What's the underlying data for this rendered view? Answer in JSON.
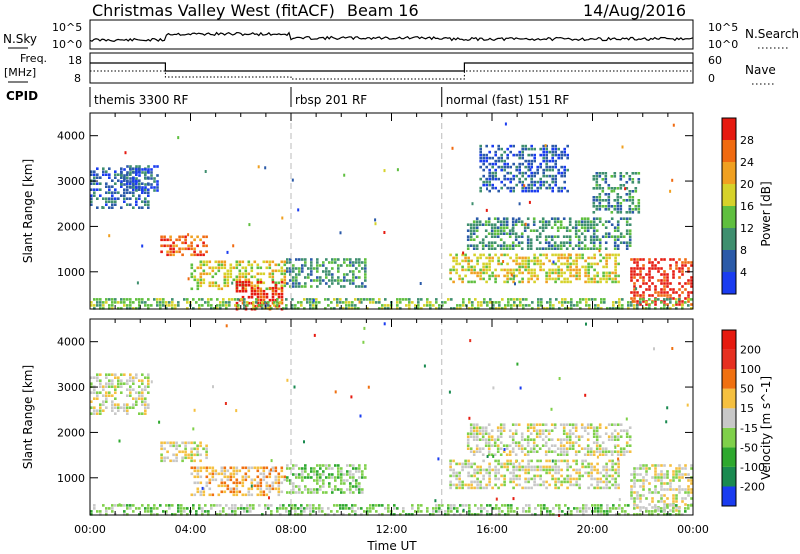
{
  "header": {
    "station": "Christmas Valley West (fitACF)",
    "beam": "Beam 16",
    "date": "14/Aug/2016"
  },
  "strips": {
    "nsky_label": "N.Sky",
    "nsearch_label": "N.Search",
    "nsky_tick_top": "10^5",
    "nsky_tick_bottom": "10^0",
    "freq_label_1": "Freq.",
    "freq_label_2": "[MHz]",
    "freq_tick_top": "18",
    "freq_tick_bottom": "8",
    "nave_label": "Nave",
    "nave_tick_top": "60",
    "nave_tick_bottom": "0",
    "cpid_label": "CPID",
    "cpid_segments": [
      {
        "name": "themis 3300 RF",
        "start_hour": 0,
        "end_hour": 8
      },
      {
        "name": "rbsp 201 RF",
        "start_hour": 8,
        "end_hour": 14
      },
      {
        "name": "normal (fast) 151 RF",
        "start_hour": 14,
        "end_hour": 24
      }
    ]
  },
  "chart_data": [
    {
      "type": "heatmap",
      "panel": "power",
      "ylabel": "Slant Range [km]",
      "colorbar_label": "Power [dB]",
      "ylim": [
        180,
        4500
      ],
      "yticks": [
        1000,
        2000,
        3000,
        4000
      ],
      "colorbar_ticks": [
        "4",
        "8",
        "12",
        "16",
        "20",
        "24",
        "28"
      ],
      "colorbar_colors": [
        "#1a3cf0",
        "#2b5aa8",
        "#3f8f6f",
        "#5fbf3f",
        "#d6d22a",
        "#f0a020",
        "#f06a10",
        "#e61a10"
      ],
      "regions": [
        {
          "x": [
            0.0,
            2.3
          ],
          "y": [
            2400,
            3300
          ],
          "level": 1
        },
        {
          "x": [
            1.2,
            2.7
          ],
          "y": [
            2800,
            3350
          ],
          "level": 1
        },
        {
          "x": [
            2.8,
            4.7
          ],
          "y": [
            1350,
            1800
          ],
          "level": 6
        },
        {
          "x": [
            4.0,
            7.8
          ],
          "y": [
            600,
            1250
          ],
          "level": 4
        },
        {
          "x": [
            5.8,
            7.6
          ],
          "y": [
            200,
            800
          ],
          "level": 7
        },
        {
          "x": [
            7.8,
            11.0
          ],
          "y": [
            700,
            1300
          ],
          "level": 2
        },
        {
          "x": [
            14.3,
            21.0
          ],
          "y": [
            800,
            1400
          ],
          "level": 4
        },
        {
          "x": [
            15.0,
            21.5
          ],
          "y": [
            1500,
            2200
          ],
          "level": 2
        },
        {
          "x": [
            15.5,
            19.0
          ],
          "y": [
            2800,
            3800
          ],
          "level": 1
        },
        {
          "x": [
            20.0,
            21.8
          ],
          "y": [
            2300,
            3200
          ],
          "level": 2
        },
        {
          "x": [
            21.5,
            23.9
          ],
          "y": [
            250,
            1300
          ],
          "level": 7
        },
        {
          "x": [
            0.0,
            24.0
          ],
          "y": [
            180,
            420
          ],
          "level": 3
        }
      ]
    },
    {
      "type": "heatmap",
      "panel": "velocity",
      "ylabel": "Slant Range [km]",
      "colorbar_label": "Velocity [m s^-1]",
      "ylim": [
        180,
        4500
      ],
      "yticks": [
        1000,
        2000,
        3000,
        4000
      ],
      "xlim": [
        0,
        24
      ],
      "xticks": [
        "00:00",
        "04:00",
        "08:00",
        "12:00",
        "16:00",
        "20:00",
        "00:00"
      ],
      "xlabel": "Time UT",
      "colorbar_ticks": [
        "200",
        "100",
        "50",
        "15",
        "-15",
        "-50",
        "-100",
        "-200"
      ],
      "colorbar_colors": [
        "#1a3cf0",
        "#1a8a50",
        "#2ea82e",
        "#7fd04a",
        "#c8c8c8",
        "#f5c040",
        "#f07010",
        "#e63020",
        "#e61a10"
      ],
      "regions": [
        {
          "x": [
            0.0,
            2.3
          ],
          "y": [
            2400,
            3300
          ],
          "level": 4
        },
        {
          "x": [
            2.8,
            4.7
          ],
          "y": [
            1350,
            1800
          ],
          "level": 4
        },
        {
          "x": [
            4.0,
            7.8
          ],
          "y": [
            600,
            1250
          ],
          "level": 5
        },
        {
          "x": [
            7.8,
            11.0
          ],
          "y": [
            700,
            1300
          ],
          "level": 3
        },
        {
          "x": [
            14.3,
            21.0
          ],
          "y": [
            800,
            1400
          ],
          "level": 4
        },
        {
          "x": [
            15.0,
            21.5
          ],
          "y": [
            1500,
            2200
          ],
          "level": 4
        },
        {
          "x": [
            21.5,
            23.9
          ],
          "y": [
            250,
            1300
          ],
          "level": 4
        },
        {
          "x": [
            0.0,
            24.0
          ],
          "y": [
            180,
            420
          ],
          "level": 3
        }
      ]
    }
  ]
}
